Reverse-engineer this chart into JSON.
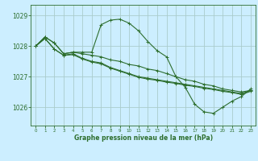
{
  "title": "Graphe pression niveau de la mer (hPa)",
  "bg_color": "#cceeff",
  "grid_color": "#aacccc",
  "line_color": "#2d6e2d",
  "ylim": [
    1025.4,
    1029.35
  ],
  "yticks": [
    1026,
    1027,
    1028,
    1029
  ],
  "xlim": [
    -0.5,
    23.5
  ],
  "xticks": [
    0,
    1,
    2,
    3,
    4,
    5,
    6,
    7,
    8,
    9,
    10,
    11,
    12,
    13,
    14,
    15,
    16,
    17,
    18,
    19,
    20,
    21,
    22,
    23
  ],
  "series": [
    [
      1028.0,
      1028.3,
      1028.1,
      1027.75,
      1027.8,
      1027.8,
      1027.8,
      1028.7,
      1028.85,
      1028.88,
      1028.75,
      1028.5,
      1028.15,
      1027.85,
      1027.65,
      1027.0,
      1026.65,
      1026.1,
      1025.85,
      1025.8,
      1026.0,
      1026.2,
      1026.35,
      1026.6
    ],
    [
      1028.0,
      1028.3,
      1028.1,
      1027.75,
      1027.8,
      1027.75,
      1027.7,
      1027.65,
      1027.55,
      1027.5,
      1027.4,
      1027.35,
      1027.25,
      1027.2,
      1027.1,
      1027.0,
      1026.9,
      1026.85,
      1026.75,
      1026.7,
      1026.6,
      1026.55,
      1026.5,
      1026.55
    ],
    [
      1028.0,
      1028.25,
      1027.9,
      1027.7,
      1027.75,
      1027.6,
      1027.5,
      1027.45,
      1027.3,
      1027.2,
      1027.1,
      1027.0,
      1026.95,
      1026.9,
      1026.85,
      1026.8,
      1026.75,
      1026.7,
      1026.65,
      1026.6,
      1026.55,
      1026.5,
      1026.45,
      1026.55
    ],
    [
      1028.0,
      1028.25,
      1027.9,
      1027.7,
      1027.72,
      1027.58,
      1027.48,
      1027.42,
      1027.28,
      1027.18,
      1027.08,
      1026.98,
      1026.92,
      1026.88,
      1026.82,
      1026.78,
      1026.72,
      1026.68,
      1026.62,
      1026.58,
      1026.52,
      1026.48,
      1026.42,
      1026.52
    ]
  ]
}
